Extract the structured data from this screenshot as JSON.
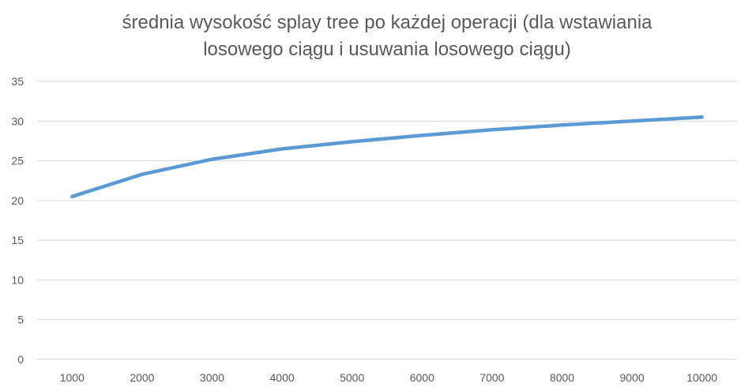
{
  "chart_data": {
    "type": "line",
    "title_lines": [
      "średnia wysokość splay tree po każdej operacji (dla wstawiania",
      "losowego ciągu i usuwania losowego ciągu)"
    ],
    "xlabel": "",
    "ylabel": "",
    "categories": [
      "1000",
      "2000",
      "3000",
      "4000",
      "5000",
      "6000",
      "7000",
      "8000",
      "9000",
      "10000"
    ],
    "series": [
      {
        "values": [
          20.5,
          23.3,
          25.2,
          26.5,
          27.4,
          28.2,
          28.9,
          29.5,
          30.0,
          30.5
        ],
        "color": "#5b9bd5"
      }
    ],
    "ylim": [
      0,
      35
    ],
    "yticks": [
      0,
      5,
      10,
      15,
      20,
      25,
      30,
      35
    ],
    "grid": true,
    "legend": "none"
  }
}
